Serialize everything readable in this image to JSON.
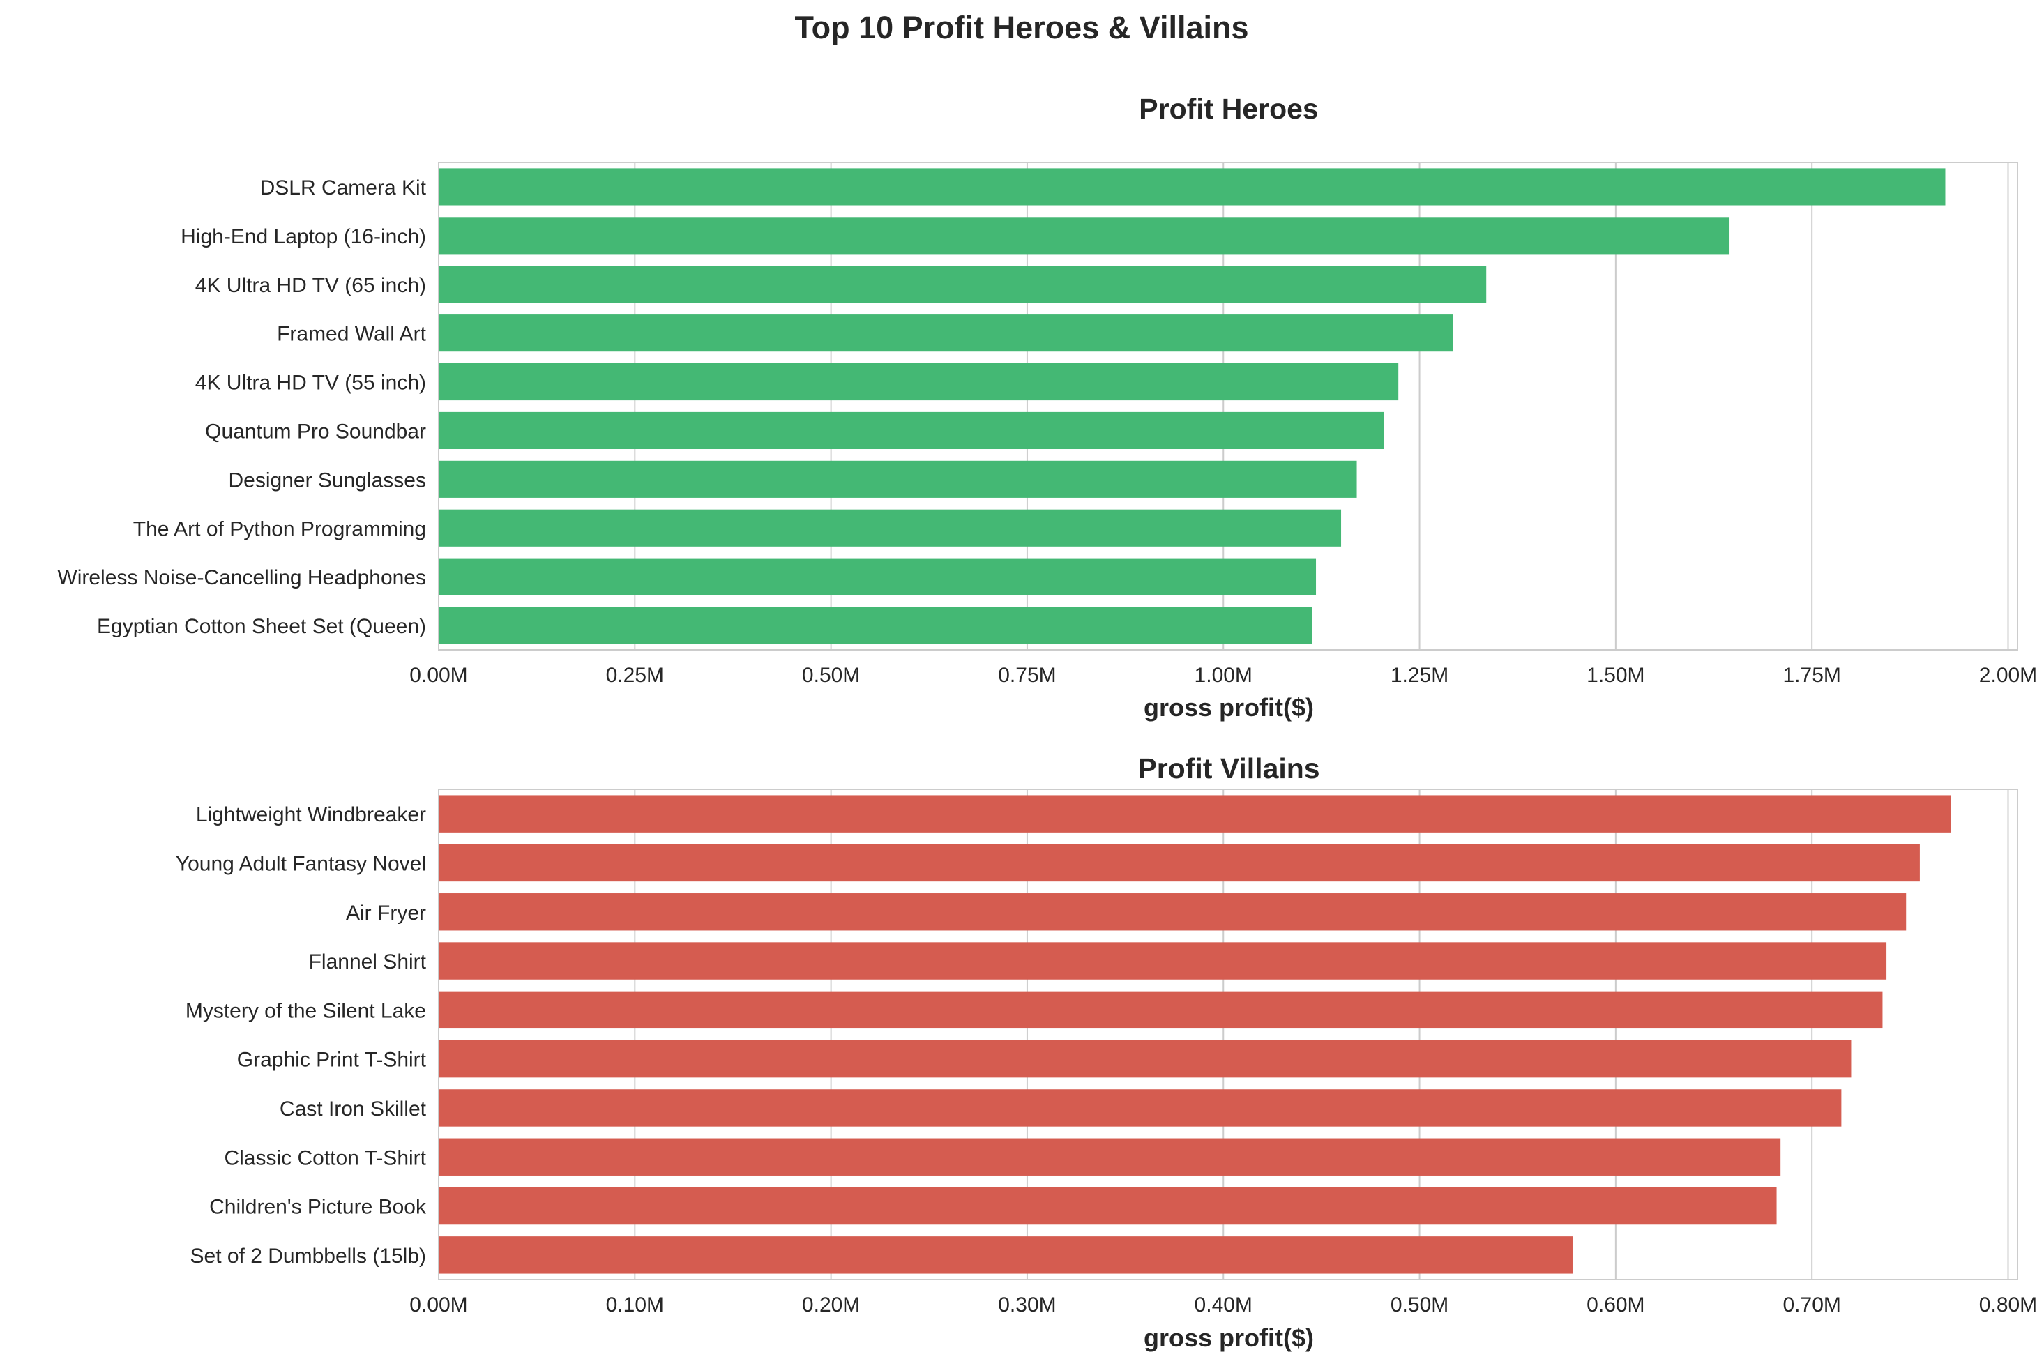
{
  "figure": {
    "title": "Top 10 Profit Heroes & Villains"
  },
  "chart_data": [
    {
      "type": "bar",
      "orientation": "horizontal",
      "title": "Profit Heroes",
      "xlabel": "gross profit($)",
      "ylabel": "",
      "xlim": [
        0,
        2000000
      ],
      "xticks": [
        0,
        250000,
        500000,
        750000,
        1000000,
        1250000,
        1500000,
        1750000,
        2000000
      ],
      "xtick_labels": [
        "0.00M",
        "0.25M",
        "0.50M",
        "0.75M",
        "1.00M",
        "1.25M",
        "1.50M",
        "1.75M",
        "2.00M"
      ],
      "grid": "x-only",
      "color": "#44b874",
      "categories": [
        "DSLR Camera Kit",
        "High-End Laptop (16-inch)",
        "4K Ultra HD TV (65 inch)",
        "Framed Wall Art",
        "4K Ultra HD TV (55 inch)",
        "Quantum Pro Soundbar",
        "Designer Sunglasses",
        "The Art of Python Programming",
        "Wireless Noise-Cancelling Headphones",
        "Egyptian Cotton Sheet Set (Queen)"
      ],
      "values": [
        1920000,
        1645000,
        1335000,
        1293000,
        1223000,
        1205000,
        1170000,
        1150000,
        1118000,
        1113000
      ]
    },
    {
      "type": "bar",
      "orientation": "horizontal",
      "title": "Profit Villains",
      "xlabel": "gross profit($)",
      "ylabel": "",
      "xlim": [
        0,
        800000
      ],
      "xticks": [
        0,
        100000,
        200000,
        300000,
        400000,
        500000,
        600000,
        700000,
        800000
      ],
      "xtick_labels": [
        "0.00M",
        "0.10M",
        "0.20M",
        "0.30M",
        "0.40M",
        "0.50M",
        "0.60M",
        "0.70M",
        "0.80M"
      ],
      "grid": "x-only",
      "color": "#d55c50",
      "categories": [
        "Lightweight Windbreaker",
        "Young Adult Fantasy Novel",
        "Air Fryer",
        "Flannel Shirt",
        "Mystery of the Silent Lake",
        "Graphic Print T-Shirt",
        "Cast Iron Skillet",
        "Classic Cotton T-Shirt",
        "Children's Picture Book",
        "Set of 2 Dumbbells (15lb)"
      ],
      "values": [
        771000,
        755000,
        748000,
        738000,
        736000,
        720000,
        715000,
        684000,
        682000,
        578000
      ]
    }
  ]
}
